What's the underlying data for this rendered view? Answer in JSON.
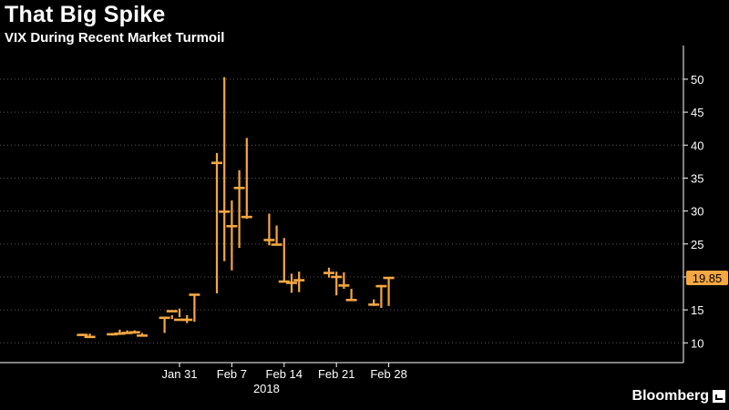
{
  "header": {
    "title": "That Big Spike",
    "subtitle": "VIX During Recent Market Turmoil"
  },
  "brand": {
    "name": "Bloomberg",
    "icon": "bloomberg-chart-icon"
  },
  "colors": {
    "background": "#000000",
    "series": "#f5a742",
    "axis": "#ffffff",
    "grid": "#5a5a5a",
    "last_label_bg": "#f5a742",
    "last_label_text": "#000000"
  },
  "chart_data": {
    "type": "hlc-bar",
    "title": "That Big Spike",
    "subtitle": "VIX During Recent Market Turmoil",
    "xlabel": "2018",
    "ylabel": "",
    "ylim": [
      7,
      54
    ],
    "y_ticks": [
      10,
      15,
      20,
      25,
      30,
      35,
      40,
      45,
      50
    ],
    "x_ticks": [
      "Jan 31",
      "Feb 7",
      "Feb 14",
      "Feb 21",
      "Feb 28"
    ],
    "x_tick_dates": [
      "2018-01-31",
      "2018-02-07",
      "2018-02-14",
      "2018-02-21",
      "2018-02-28"
    ],
    "grid": "horizontal-dotted",
    "last_value_label": "19.85",
    "series": [
      {
        "points": [
          {
            "date": "2018-01-18",
            "high": 11.4,
            "low": 11.2,
            "close": 11.2
          },
          {
            "date": "2018-01-19",
            "high": 11.4,
            "low": 10.8,
            "close": 10.9
          },
          {
            "date": "2018-01-22",
            "high": 11.5,
            "low": 11.1,
            "close": 11.3
          },
          {
            "date": "2018-01-23",
            "high": 12.0,
            "low": 11.2,
            "close": 11.4
          },
          {
            "date": "2018-01-24",
            "high": 11.9,
            "low": 11.4,
            "close": 11.5
          },
          {
            "date": "2018-01-25",
            "high": 11.9,
            "low": 11.4,
            "close": 11.6
          },
          {
            "date": "2018-01-26",
            "high": 11.5,
            "low": 11.0,
            "close": 11.1
          },
          {
            "date": "2018-01-29",
            "high": 13.8,
            "low": 11.5,
            "close": 13.8
          },
          {
            "date": "2018-01-30",
            "high": 14.2,
            "low": 13.6,
            "close": 14.8
          },
          {
            "date": "2018-01-31",
            "high": 15.2,
            "low": 13.9,
            "close": 13.5
          },
          {
            "date": "2018-02-01",
            "high": 14.2,
            "low": 13.0,
            "close": 13.5
          },
          {
            "date": "2018-02-02",
            "high": 17.4,
            "low": 13.2,
            "close": 17.3
          },
          {
            "date": "2018-02-05",
            "high": 38.8,
            "low": 17.5,
            "close": 37.3
          },
          {
            "date": "2018-02-06",
            "high": 50.3,
            "low": 22.4,
            "close": 29.9
          },
          {
            "date": "2018-02-07",
            "high": 31.6,
            "low": 21.0,
            "close": 27.7
          },
          {
            "date": "2018-02-08",
            "high": 36.2,
            "low": 24.4,
            "close": 33.5
          },
          {
            "date": "2018-02-09",
            "high": 41.1,
            "low": 28.8,
            "close": 29.1
          },
          {
            "date": "2018-02-12",
            "high": 29.6,
            "low": 24.8,
            "close": 25.6
          },
          {
            "date": "2018-02-13",
            "high": 27.8,
            "low": 25.0,
            "close": 24.9
          },
          {
            "date": "2018-02-14",
            "high": 25.9,
            "low": 19.3,
            "close": 19.3
          },
          {
            "date": "2018-02-15",
            "high": 20.5,
            "low": 17.6,
            "close": 19.1
          },
          {
            "date": "2018-02-16",
            "high": 20.8,
            "low": 17.7,
            "close": 19.5
          },
          {
            "date": "2018-02-20",
            "high": 21.4,
            "low": 19.9,
            "close": 20.6
          },
          {
            "date": "2018-02-21",
            "high": 20.8,
            "low": 17.2,
            "close": 20.0
          },
          {
            "date": "2018-02-22",
            "high": 20.7,
            "low": 18.2,
            "close": 18.7
          },
          {
            "date": "2018-02-23",
            "high": 18.2,
            "low": 16.4,
            "close": 16.5
          },
          {
            "date": "2018-02-26",
            "high": 16.6,
            "low": 15.6,
            "close": 15.8
          },
          {
            "date": "2018-02-27",
            "high": 18.8,
            "low": 15.3,
            "close": 18.6
          },
          {
            "date": "2018-02-28",
            "high": 20.0,
            "low": 15.6,
            "close": 19.85
          }
        ]
      }
    ]
  }
}
